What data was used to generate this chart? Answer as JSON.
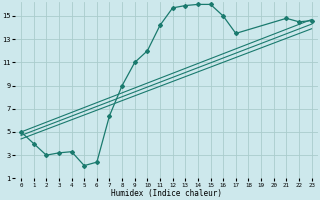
{
  "background_color": "#cde8ec",
  "grid_color": "#aacccc",
  "line_color": "#1a7a6e",
  "xlabel": "Humidex (Indice chaleur)",
  "xlim": [
    -0.5,
    23.5
  ],
  "ylim": [
    1,
    16.2
  ],
  "xticks": [
    0,
    1,
    2,
    3,
    4,
    5,
    6,
    7,
    8,
    9,
    10,
    11,
    12,
    13,
    14,
    15,
    16,
    17,
    18,
    19,
    20,
    21,
    22,
    23
  ],
  "yticks": [
    1,
    3,
    5,
    7,
    9,
    11,
    13,
    15
  ],
  "curve_x": [
    0,
    1,
    2,
    3,
    4,
    5,
    6,
    7,
    8,
    9,
    10,
    11,
    12,
    13,
    14,
    15,
    16,
    17,
    21,
    22,
    23
  ],
  "curve_y": [
    5,
    4,
    3,
    3.2,
    3.3,
    2.1,
    2.4,
    6.4,
    9,
    11,
    12,
    14.2,
    15.7,
    15.9,
    16.0,
    16.0,
    15.0,
    13.5,
    14.8,
    14.5,
    14.6
  ],
  "trendline1": {
    "x": [
      0,
      23
    ],
    "y": [
      5.0,
      14.7
    ]
  },
  "trendline2": {
    "x": [
      0,
      23
    ],
    "y": [
      4.7,
      14.3
    ]
  },
  "trendline3": {
    "x": [
      0,
      23
    ],
    "y": [
      4.4,
      13.9
    ]
  }
}
